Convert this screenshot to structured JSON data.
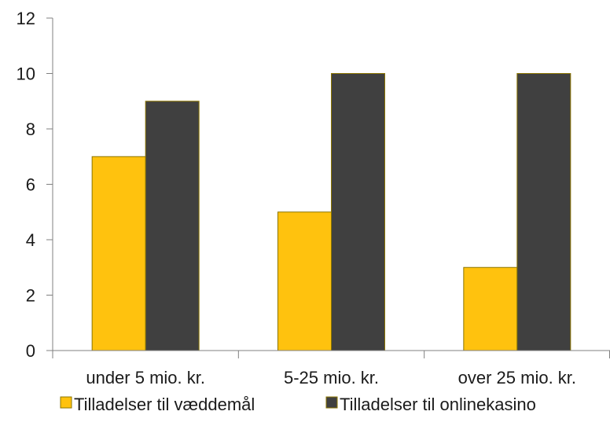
{
  "chart_data": {
    "type": "bar",
    "title": "",
    "xlabel": "",
    "ylabel": "",
    "categories": [
      "under 5 mio. kr.",
      "5-25 mio. kr.",
      "over 25 mio. kr."
    ],
    "series": [
      {
        "name": "Tilladelser til væddemål",
        "values": [
          7,
          5,
          3
        ],
        "color": "#FFC20E"
      },
      {
        "name": "Tilladelser til onlinekasino",
        "values": [
          9,
          10,
          10
        ],
        "color": "#404040"
      }
    ],
    "ylim": [
      0,
      12
    ],
    "yticks": [
      0,
      2,
      4,
      6,
      8,
      10,
      12
    ],
    "grid": false,
    "legend_position": "bottom",
    "bar_outline_color": "#8B7500",
    "axis_color": "#808080"
  }
}
